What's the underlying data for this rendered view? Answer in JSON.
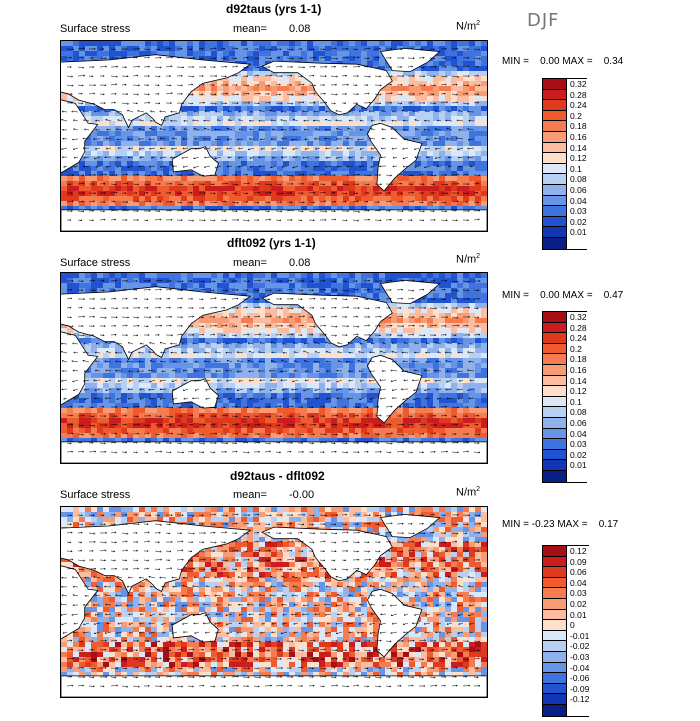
{
  "season": "DJF",
  "units_main": "N/m",
  "units_sup": "2",
  "panels": [
    {
      "title": "d92taus (yrs 1-1)",
      "subtitle": "Surface stress",
      "mean_label": "mean=",
      "mean_value": "0.08",
      "min_label": "MIN =",
      "min_value": "0.00",
      "max_label": "MAX =",
      "max_value": "0.34",
      "colorbar": [
        {
          "label": "0.32",
          "color": "#a50f15"
        },
        {
          "label": "0.28",
          "color": "#cb1d1d"
        },
        {
          "label": "0.24",
          "color": "#e03a1e"
        },
        {
          "label": "0.2",
          "color": "#ef5b2e"
        },
        {
          "label": "0.18",
          "color": "#f57c50"
        },
        {
          "label": "0.16",
          "color": "#f89c76"
        },
        {
          "label": "0.14",
          "color": "#fbbc9f"
        },
        {
          "label": "0.12",
          "color": "#fde0cc"
        },
        {
          "label": "0.1",
          "color": "#dce8f7"
        },
        {
          "label": "0.08",
          "color": "#b8d0f2"
        },
        {
          "label": "0.06",
          "color": "#8fb2ec"
        },
        {
          "label": "0.04",
          "color": "#6694e6"
        },
        {
          "label": "0.03",
          "color": "#3f73de"
        },
        {
          "label": "0.02",
          "color": "#2152d0"
        },
        {
          "label": "0.01",
          "color": "#1236b3"
        },
        {
          "label": "",
          "color": "#081f85"
        }
      ]
    },
    {
      "title": "dflt092 (yrs 1-1)",
      "subtitle": "Surface stress",
      "mean_label": "mean=",
      "mean_value": "0.08",
      "min_label": "MIN =",
      "min_value": "0.00",
      "max_label": "MAX =",
      "max_value": "0.47",
      "colorbar": [
        {
          "label": "0.32",
          "color": "#a50f15"
        },
        {
          "label": "0.28",
          "color": "#cb1d1d"
        },
        {
          "label": "0.24",
          "color": "#e03a1e"
        },
        {
          "label": "0.2",
          "color": "#ef5b2e"
        },
        {
          "label": "0.18",
          "color": "#f57c50"
        },
        {
          "label": "0.16",
          "color": "#f89c76"
        },
        {
          "label": "0.14",
          "color": "#fbbc9f"
        },
        {
          "label": "0.12",
          "color": "#fde0cc"
        },
        {
          "label": "0.1",
          "color": "#dce8f7"
        },
        {
          "label": "0.08",
          "color": "#b8d0f2"
        },
        {
          "label": "0.06",
          "color": "#8fb2ec"
        },
        {
          "label": "0.04",
          "color": "#6694e6"
        },
        {
          "label": "0.03",
          "color": "#3f73de"
        },
        {
          "label": "0.02",
          "color": "#2152d0"
        },
        {
          "label": "0.01",
          "color": "#1236b3"
        },
        {
          "label": "",
          "color": "#081f85"
        }
      ]
    },
    {
      "title": "d92taus - dflt092",
      "subtitle": "Surface stress",
      "mean_label": "mean=",
      "mean_value": "-0.00",
      "min_label": "MIN =",
      "min_value": "-0.23",
      "max_label": "MAX =",
      "max_value": "0.17",
      "colorbar": [
        {
          "label": "0.12",
          "color": "#a50f15"
        },
        {
          "label": "0.09",
          "color": "#cb1d1d"
        },
        {
          "label": "0.06",
          "color": "#e03a1e"
        },
        {
          "label": "0.04",
          "color": "#ef5b2e"
        },
        {
          "label": "0.03",
          "color": "#f57c50"
        },
        {
          "label": "0.02",
          "color": "#f89c76"
        },
        {
          "label": "0.01",
          "color": "#fbbc9f"
        },
        {
          "label": "0",
          "color": "#fde0cc"
        },
        {
          "label": "-0.01",
          "color": "#dce8f7"
        },
        {
          "label": "-0.02",
          "color": "#b8d0f2"
        },
        {
          "label": "-0.03",
          "color": "#8fb2ec"
        },
        {
          "label": "-0.04",
          "color": "#6694e6"
        },
        {
          "label": "-0.06",
          "color": "#3f73de"
        },
        {
          "label": "-0.09",
          "color": "#2152d0"
        },
        {
          "label": "-0.12",
          "color": "#1236b3"
        },
        {
          "label": "",
          "color": "#081f85"
        }
      ]
    }
  ]
}
